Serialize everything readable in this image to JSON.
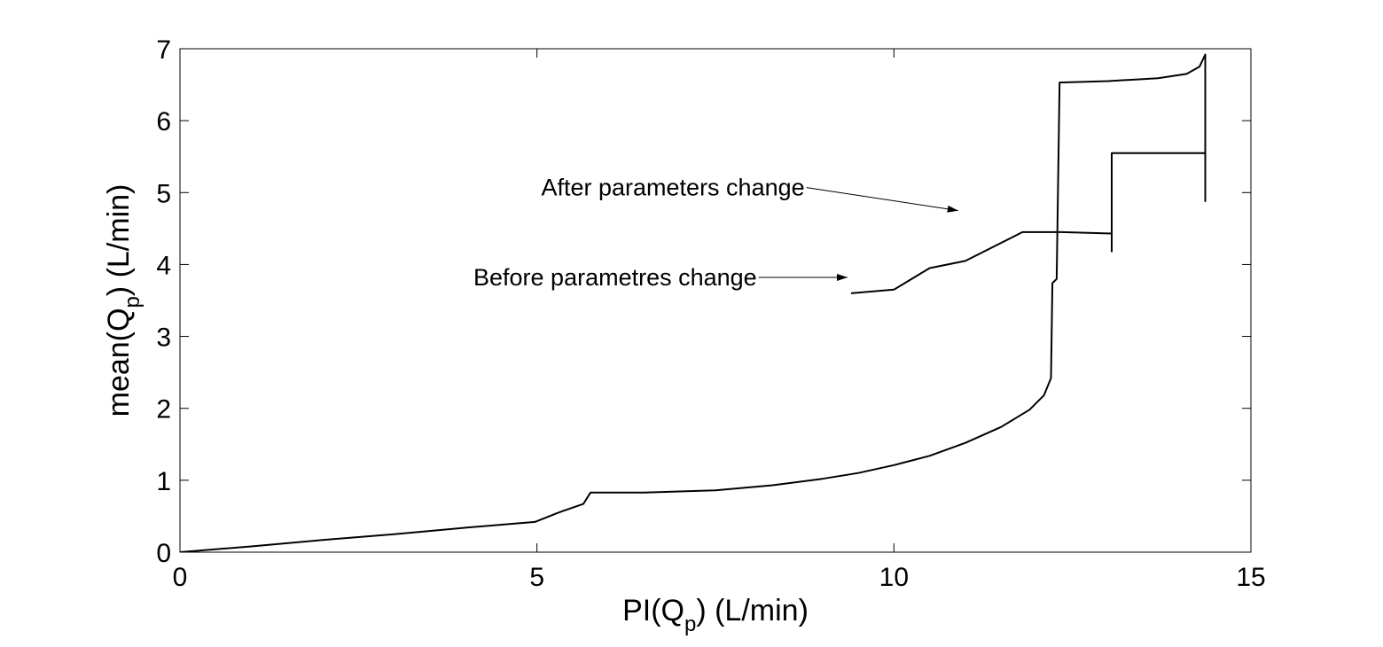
{
  "chart_data": {
    "type": "line",
    "title": "",
    "xlabel": {
      "main": "PI(Q",
      "sub": "p",
      "tail": ") (L/min)"
    },
    "ylabel": {
      "main": "mean(Q",
      "sub": "p",
      "tail": ") (L/min)"
    },
    "xlim": [
      0,
      15
    ],
    "ylim": [
      0,
      7
    ],
    "xticks": [
      0,
      5,
      10,
      15
    ],
    "xtick_labels": [
      "0",
      "5",
      "10",
      "15"
    ],
    "yticks": [
      0,
      1,
      2,
      3,
      4,
      5,
      6,
      7
    ],
    "ytick_labels": [
      "0",
      "1",
      "2",
      "3",
      "4",
      "5",
      "6",
      "7"
    ],
    "grid": false,
    "series": [
      {
        "color": "#000000",
        "points": [
          [
            0,
            0
          ],
          [
            1,
            0.08
          ],
          [
            2,
            0.17
          ],
          [
            3,
            0.25
          ],
          [
            4,
            0.34
          ],
          [
            4.97,
            0.42
          ],
          [
            5.3,
            0.55
          ],
          [
            5.65,
            0.67
          ],
          [
            5.75,
            0.83
          ],
          [
            6.5,
            0.83
          ],
          [
            7.5,
            0.86
          ],
          [
            8.3,
            0.93
          ],
          [
            9.0,
            1.02
          ],
          [
            9.5,
            1.1
          ],
          [
            10.0,
            1.21
          ],
          [
            10.5,
            1.34
          ],
          [
            11.0,
            1.52
          ],
          [
            11.5,
            1.74
          ],
          [
            11.9,
            1.98
          ],
          [
            12.1,
            2.18
          ],
          [
            12.2,
            2.42
          ],
          [
            12.22,
            3.74
          ],
          [
            12.28,
            3.8
          ],
          [
            12.32,
            6.53
          ],
          [
            13.0,
            6.55
          ],
          [
            13.7,
            6.59
          ],
          [
            14.1,
            6.65
          ],
          [
            14.28,
            6.75
          ],
          [
            14.36,
            6.92
          ],
          [
            14.36,
            4.88
          ],
          [
            14.36,
            5.55
          ],
          [
            13.05,
            5.55
          ],
          [
            13.05,
            4.18
          ],
          [
            13.05,
            4.43
          ],
          [
            12.35,
            4.45
          ],
          [
            11.8,
            4.45
          ],
          [
            11.0,
            4.05
          ],
          [
            10.5,
            3.95
          ],
          [
            10.0,
            3.65
          ],
          [
            9.4,
            3.6
          ]
        ]
      }
    ],
    "annotations": [
      {
        "text": "After parameters change",
        "xy": [
          10.9,
          4.75
        ],
        "text_xy": [
          8.75,
          5.07
        ]
      },
      {
        "text": "Before parametres change",
        "xy": [
          9.35,
          3.82
        ],
        "text_xy": [
          8.08,
          3.82
        ]
      }
    ]
  }
}
